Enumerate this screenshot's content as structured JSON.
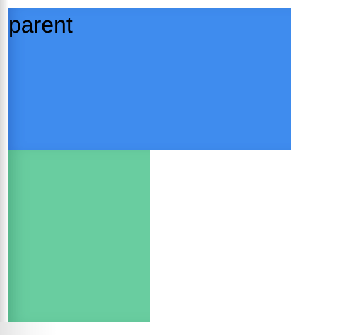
{
  "parent": {
    "label": "parent",
    "color": "#3f8cee"
  },
  "child": {
    "color": "#69cda0"
  },
  "background": {
    "color": "#ffffff"
  }
}
